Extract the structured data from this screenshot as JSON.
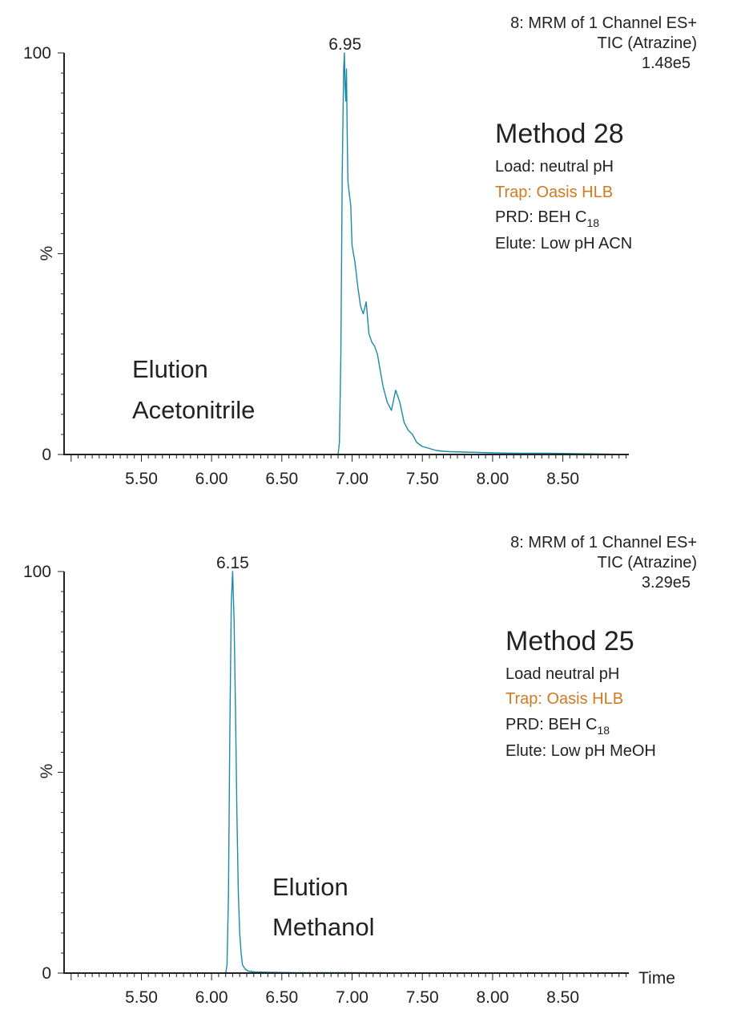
{
  "colors": {
    "trace": "#1b8aa6",
    "trap_text": "#d07a22",
    "text": "#222222"
  },
  "chart_data": [
    {
      "type": "line",
      "xlim": [
        4.95,
        8.97
      ],
      "ylim": [
        0,
        100
      ],
      "x_ticks": [
        "5.50",
        "6.00",
        "6.50",
        "7.00",
        "7.50",
        "8.00",
        "8.50"
      ],
      "x_tick_values": [
        5.5,
        6.0,
        6.5,
        7.0,
        7.5,
        8.0,
        8.5
      ],
      "y_ticks": [
        "0",
        "100"
      ],
      "ylabel": "%",
      "xlabel": "",
      "peak_label": "6.95",
      "peak_x": 6.95,
      "header": [
        "8: MRM of 1 Channel ES+",
        "TIC (Atrazine)",
        "1.48e5"
      ],
      "method": {
        "title": "Method 28",
        "load": "Load: neutral pH",
        "trap": "Trap: Oasis HLB",
        "prd_prefix": "PRD: BEH C",
        "prd_sub": "18",
        "elute": "Elute: Low pH ACN"
      },
      "elution": [
        "Elution",
        "Acetonitrile"
      ],
      "series": [
        {
          "x": [
            4.95,
            6.9,
            6.91,
            6.92,
            6.93,
            6.94,
            6.945,
            6.95,
            6.955,
            6.96,
            6.965,
            6.97,
            6.98,
            6.99,
            7.0,
            7.02,
            7.04,
            7.06,
            7.08,
            7.1,
            7.12,
            7.14,
            7.16,
            7.18,
            7.2,
            7.22,
            7.25,
            7.28,
            7.31,
            7.34,
            7.37,
            7.4,
            7.43,
            7.46,
            7.5,
            7.55,
            7.6,
            7.65,
            7.7,
            7.8,
            7.9,
            8.0,
            8.2,
            8.4,
            8.6,
            8.8,
            8.97
          ],
          "y": [
            0,
            0,
            3,
            25,
            70,
            96,
            100,
            92,
            88,
            96,
            80,
            68,
            65,
            62,
            52,
            48,
            42,
            37,
            35,
            38,
            30,
            28,
            27,
            25,
            21,
            17,
            13,
            11,
            16,
            13,
            8,
            6,
            5,
            3,
            2,
            1.5,
            1,
            0.8,
            0.7,
            0.6,
            0.5,
            0.4,
            0.3,
            0.3,
            0.2,
            0.1,
            0
          ]
        }
      ]
    },
    {
      "type": "line",
      "xlim": [
        4.95,
        8.97
      ],
      "ylim": [
        0,
        100
      ],
      "x_ticks": [
        "5.50",
        "6.00",
        "6.50",
        "7.00",
        "7.50",
        "8.00",
        "8.50"
      ],
      "x_tick_values": [
        5.5,
        6.0,
        6.5,
        7.0,
        7.5,
        8.0,
        8.5
      ],
      "y_ticks": [
        "0",
        "100"
      ],
      "ylabel": "%",
      "xlabel": "Time",
      "peak_label": "6.15",
      "peak_x": 6.15,
      "header": [
        "8: MRM of 1 Channel ES+",
        "TIC (Atrazine)",
        "3.29e5"
      ],
      "method": {
        "title": "Method 25",
        "load": "Load neutral pH",
        "trap": "Trap: Oasis HLB",
        "prd_prefix": "PRD: BEH C",
        "prd_sub": "18",
        "elute": "Elute: Low pH MeOH"
      },
      "elution": [
        "Elution",
        "Methanol"
      ],
      "series": [
        {
          "x": [
            4.95,
            6.1,
            6.11,
            6.12,
            6.13,
            6.14,
            6.15,
            6.16,
            6.17,
            6.18,
            6.19,
            6.2,
            6.21,
            6.22,
            6.24,
            6.26,
            6.3,
            6.4,
            6.6,
            7.0,
            8.0,
            8.97
          ],
          "y": [
            0,
            0,
            2,
            20,
            60,
            92,
            100,
            88,
            65,
            40,
            20,
            10,
            5,
            2,
            1,
            0.5,
            0.3,
            0.2,
            0.1,
            0.1,
            0,
            0
          ]
        }
      ]
    }
  ]
}
